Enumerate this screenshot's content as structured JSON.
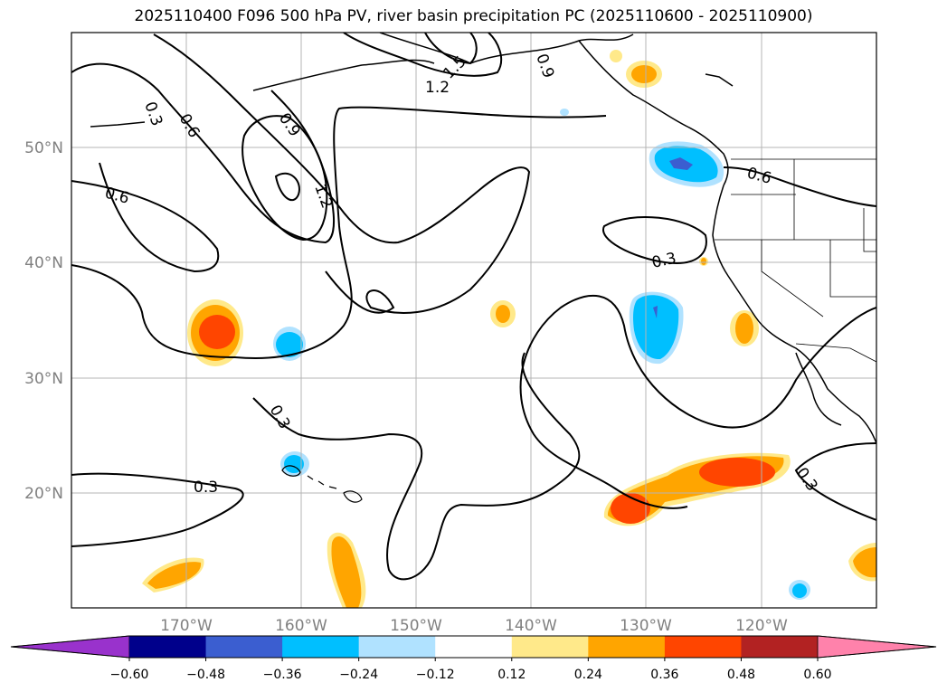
{
  "title": "2025110400 F096 500 hPa PV, river basin precipitation PC (2025110600 - 2025110900)",
  "map": {
    "lon_range": [
      -180,
      -110
    ],
    "lat_range": [
      10,
      60
    ],
    "lat_labels": [
      "50°N",
      "40°N",
      "30°N",
      "20°N"
    ],
    "lon_labels": [
      "170°W",
      "160°W",
      "150°W",
      "140°W",
      "130°W",
      "120°W"
    ],
    "contour_labels": {
      "c03_a": "0.3",
      "c06_a": "0.6",
      "c09_a": "0.9",
      "c12_a": "1.2",
      "c15": "1.5",
      "c12_b": "1.2",
      "c09_b": "0.9",
      "c06_b": "0.6",
      "c06_c": "0.6",
      "c03_b": "0.3",
      "c03_c": "0.3",
      "c03_d": "0.3",
      "c03_e": "0.3"
    }
  },
  "colorbar": {
    "colors": [
      "#9932CC",
      "#00008B",
      "#3B5ED0",
      "#00BFFF",
      "#B0E2FF",
      "#FFFFFF",
      "#FFE98A",
      "#FFA500",
      "#FF4500",
      "#B22222",
      "#FF82AB"
    ],
    "ticks": [
      "−0.60",
      "−0.48",
      "−0.36",
      "−0.24",
      "−0.12",
      "0.12",
      "0.24",
      "0.36",
      "0.48",
      "0.60"
    ]
  }
}
